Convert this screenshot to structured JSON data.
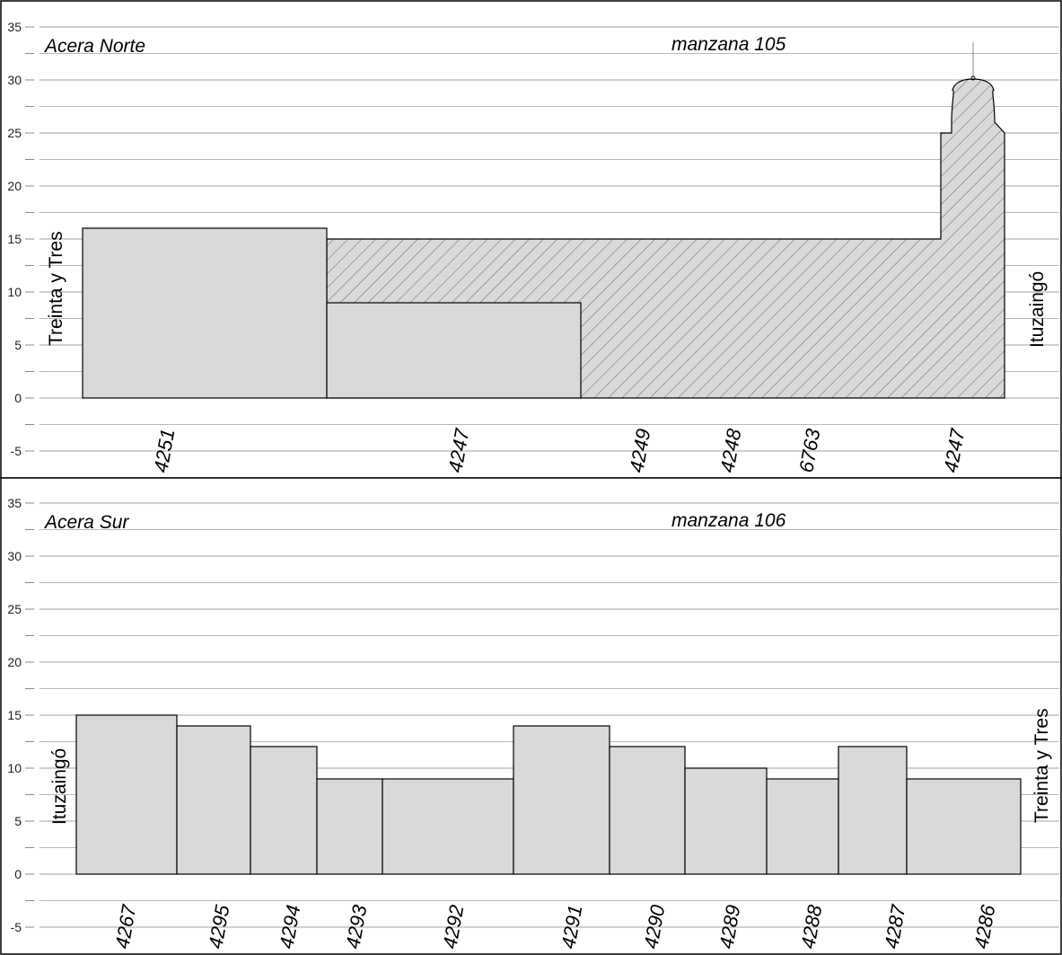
{
  "colors": {
    "background": "#ffffff",
    "grid": "#a0a0a0",
    "building_fill": "#d9d9d9",
    "outline": "#000000",
    "hatch": "#555555"
  },
  "panels": [
    {
      "id": "norte",
      "side_label": "Acera Norte",
      "block_label": "manzana 105",
      "street_left": "Treinta y Tres",
      "street_right": "Ituzaingó",
      "y_axis": {
        "min": -5,
        "max": 35,
        "major_step": 5,
        "ticks": [
          "35",
          "30",
          "25",
          "20",
          "15",
          "10",
          "5",
          "0",
          "-5"
        ]
      },
      "buildings": [
        {
          "lot": "4251",
          "height": 16,
          "style": "solid"
        },
        {
          "lot": "4247",
          "height": 9,
          "style": "solid"
        },
        {
          "lot": "4247",
          "height": 15,
          "style": "hatched",
          "tower_height": 25,
          "dome_top": 30
        }
      ],
      "lot_labels": [
        "4251",
        "4247",
        "4249",
        "4248",
        "6763",
        "4247"
      ]
    },
    {
      "id": "sur",
      "side_label": "Acera Sur",
      "block_label": "manzana 106",
      "street_left": "Ituzaingó",
      "street_right": "Treinta y Tres",
      "y_axis": {
        "min": -5,
        "max": 35,
        "major_step": 5,
        "ticks": [
          "35",
          "30",
          "25",
          "20",
          "15",
          "10",
          "5",
          "0",
          "-5"
        ]
      },
      "buildings": [
        {
          "lot": "4267",
          "height": 15,
          "style": "solid"
        },
        {
          "lot": "4295",
          "height": 14,
          "style": "solid"
        },
        {
          "lot": "4294",
          "height": 12,
          "style": "solid"
        },
        {
          "lot": "4293",
          "height": 9,
          "style": "solid"
        },
        {
          "lot": "4292",
          "height": 9,
          "style": "solid"
        },
        {
          "lot": "4291",
          "height": 14,
          "style": "solid"
        },
        {
          "lot": "4290",
          "height": 12,
          "style": "solid"
        },
        {
          "lot": "4289",
          "height": 10,
          "style": "solid"
        },
        {
          "lot": "4288",
          "height": 9,
          "style": "solid"
        },
        {
          "lot": "4287",
          "height": 12,
          "style": "solid"
        },
        {
          "lot": "4286",
          "height": 9,
          "style": "solid"
        }
      ],
      "lot_labels": [
        "4267",
        "4295",
        "4294",
        "4293",
        "4292",
        "4291",
        "4290",
        "4289",
        "4288",
        "4287",
        "4286"
      ]
    }
  ]
}
